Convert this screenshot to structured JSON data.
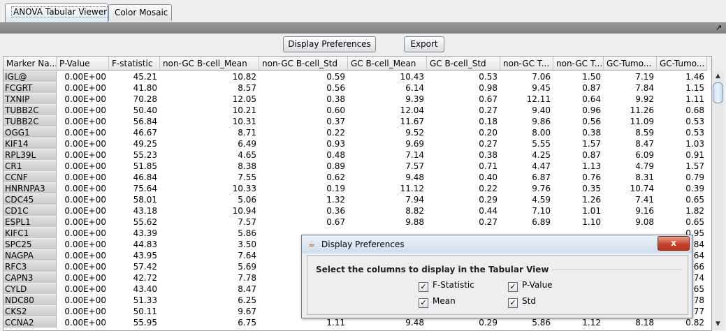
{
  "tabs": [
    {
      "label": "ANOVA Tabular Viewer",
      "active": true
    },
    {
      "label": "Color Mosaic",
      "active": false
    }
  ],
  "toolbar": {
    "display_preferences_label": "Display Preferences",
    "export_label": "Export"
  },
  "table": {
    "columns": [
      "Marker Na...",
      "P-Value",
      "F-statistic",
      "non-GC B-cell_Mean",
      "non-GC B-cell_Std",
      "GC B-cell_Mean",
      "GC B-cell_Std",
      "non-GC T...",
      "non-GC T...",
      "GC-Tumo...",
      "GC-Tumo..."
    ],
    "rows": [
      [
        "IGL@",
        "0.00E+00",
        "45.21",
        "10.82",
        "0.59",
        "10.43",
        "0.53",
        "7.06",
        "1.50",
        "7.19",
        "1.46"
      ],
      [
        "FCGRT",
        "0.00E+00",
        "41.80",
        "8.57",
        "0.56",
        "6.14",
        "0.98",
        "9.45",
        "0.87",
        "7.84",
        "1.15"
      ],
      [
        "TXNIP",
        "0.00E+00",
        "70.28",
        "12.05",
        "0.38",
        "9.39",
        "0.67",
        "12.11",
        "0.64",
        "9.92",
        "1.11"
      ],
      [
        "TUBB2C",
        "0.00E+00",
        "50.40",
        "10.21",
        "0.60",
        "12.04",
        "0.27",
        "9.40",
        "0.96",
        "11.26",
        "0.68"
      ],
      [
        "TUBB2C",
        "0.00E+00",
        "56.84",
        "10.31",
        "0.37",
        "11.67",
        "0.18",
        "9.86",
        "0.56",
        "11.09",
        "0.53"
      ],
      [
        "OGG1",
        "0.00E+00",
        "46.67",
        "8.71",
        "0.22",
        "9.52",
        "0.20",
        "8.00",
        "0.38",
        "8.59",
        "0.53"
      ],
      [
        "KIF14",
        "0.00E+00",
        "49.25",
        "6.49",
        "0.93",
        "9.69",
        "0.27",
        "5.55",
        "1.57",
        "8.47",
        "1.03"
      ],
      [
        "RPL39L",
        "0.00E+00",
        "55.23",
        "4.65",
        "0.48",
        "7.14",
        "0.38",
        "4.25",
        "0.87",
        "6.09",
        "0.91"
      ],
      [
        "CR1",
        "0.00E+00",
        "51.85",
        "8.38",
        "0.89",
        "7.57",
        "0.71",
        "4.47",
        "1.13",
        "4.79",
        "1.57"
      ],
      [
        "CCNF",
        "0.00E+00",
        "46.84",
        "7.55",
        "0.62",
        "9.48",
        "0.40",
        "6.87",
        "0.76",
        "8.31",
        "0.79"
      ],
      [
        "HNRNPA3",
        "0.00E+00",
        "75.64",
        "10.33",
        "0.19",
        "11.12",
        "0.22",
        "9.76",
        "0.35",
        "10.74",
        "0.39"
      ],
      [
        "CDC45",
        "0.00E+00",
        "58.01",
        "5.06",
        "1.32",
        "7.94",
        "0.29",
        "4.59",
        "1.26",
        "7.41",
        "0.65"
      ],
      [
        "CD1C",
        "0.00E+00",
        "43.18",
        "10.94",
        "0.36",
        "8.82",
        "0.44",
        "7.10",
        "1.01",
        "9.16",
        "1.82"
      ],
      [
        "ESPL1",
        "0.00E+00",
        "55.62",
        "7.57",
        "0.67",
        "9.88",
        "0.27",
        "6.89",
        "1.10",
        "9.08",
        "0.65"
      ],
      [
        "KIFC1",
        "0.00E+00",
        "43.39",
        "5.86",
        "",
        "",
        "",
        "",
        "",
        "",
        "0.95"
      ],
      [
        "SPC25",
        "0.00E+00",
        "44.83",
        "3.50",
        "",
        "",
        "",
        "",
        "",
        "",
        "84"
      ],
      [
        "NAGPA",
        "0.00E+00",
        "43.95",
        "7.64",
        "",
        "",
        "",
        "",
        "",
        "",
        "64"
      ],
      [
        "RFC3",
        "0.00E+00",
        "57.42",
        "5.69",
        "",
        "",
        "",
        "",
        "",
        "",
        "66"
      ],
      [
        "CAPN3",
        "0.00E+00",
        "42.72",
        "7.78",
        "",
        "",
        "",
        "",
        "",
        "",
        "74"
      ],
      [
        "CYLD",
        "0.00E+00",
        "43.40",
        "8.47",
        "",
        "",
        "",
        "",
        "",
        "",
        "65"
      ],
      [
        "NDC80",
        "0.00E+00",
        "51.33",
        "6.25",
        "",
        "",
        "",
        "",
        "",
        "",
        "78"
      ],
      [
        "CKS2",
        "0.00E+00",
        "50.11",
        "9.67",
        "",
        "",
        "",
        "",
        "",
        "",
        "77"
      ],
      [
        "CCNA2",
        "0.00E+00",
        "55.95",
        "6.75",
        "1.11",
        "9.48",
        "0.29",
        "5.86",
        "1.12",
        "8.18",
        "0.82"
      ]
    ]
  },
  "dialog": {
    "title": "Display Preferences",
    "close_label": "x",
    "group_title": "Select the columns to display in the Tabular View",
    "options": [
      {
        "label": "F-Statistic",
        "checked": true
      },
      {
        "label": "P-Value",
        "checked": true
      },
      {
        "label": "Mean",
        "checked": true
      },
      {
        "label": "Std",
        "checked": true
      }
    ]
  }
}
